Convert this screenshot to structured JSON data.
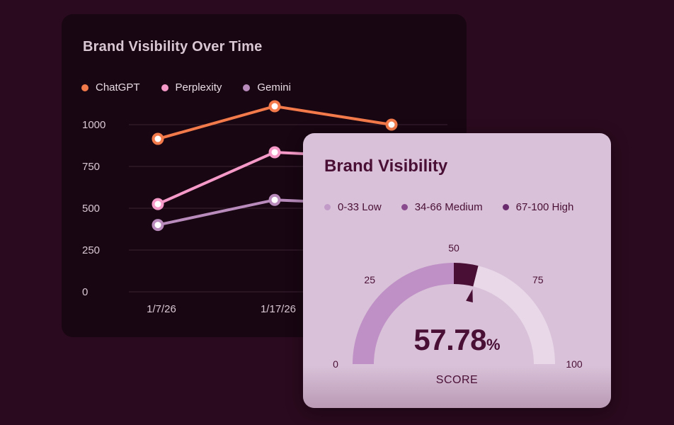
{
  "line_card": {
    "title": "Brand Visibility Over Time",
    "legend": [
      {
        "label": "ChatGPT",
        "color": "#f37a4a"
      },
      {
        "label": "Perplexity",
        "color": "#f59ac8"
      },
      {
        "label": "Gemini",
        "color": "#b88bbc"
      }
    ]
  },
  "gauge_card": {
    "title": "Brand Visibility",
    "legend": [
      {
        "label": "0-33 Low",
        "color": "#c29ac7"
      },
      {
        "label": "34-66 Medium",
        "color": "#8a4a8e"
      },
      {
        "label": "67-100 High",
        "color": "#6a2a6e"
      }
    ],
    "score_number": "57.78",
    "score_unit": "%",
    "score_label": "SCORE",
    "tick_labels": [
      "0",
      "25",
      "50",
      "75",
      "100"
    ]
  },
  "chart_data": [
    {
      "type": "line",
      "title": "Brand Visibility Over Time",
      "x": [
        "1/7/26",
        "1/17/26",
        ""
      ],
      "y_ticks": [
        0,
        250,
        500,
        750,
        1000
      ],
      "ylim": [
        0,
        1000
      ],
      "grid": true,
      "legend_position": "top-left",
      "series": [
        {
          "name": "ChatGPT",
          "values": [
            915,
            1110,
            1000
          ],
          "color": "#f37a4a"
        },
        {
          "name": "Perplexity",
          "values": [
            525,
            835,
            800
          ],
          "color": "#f59ac8"
        },
        {
          "name": "Gemini",
          "values": [
            400,
            550,
            520
          ],
          "color": "#b88bbc"
        }
      ]
    },
    {
      "type": "gauge",
      "title": "Brand Visibility",
      "value": 57.78,
      "range": [
        0,
        100
      ],
      "ticks": [
        0,
        25,
        50,
        75,
        100
      ],
      "bands": [
        {
          "label": "0-33 Low",
          "from": 0,
          "to": 33
        },
        {
          "label": "34-66 Medium",
          "from": 34,
          "to": 66
        },
        {
          "label": "67-100 High",
          "from": 67,
          "to": 100
        }
      ]
    }
  ]
}
